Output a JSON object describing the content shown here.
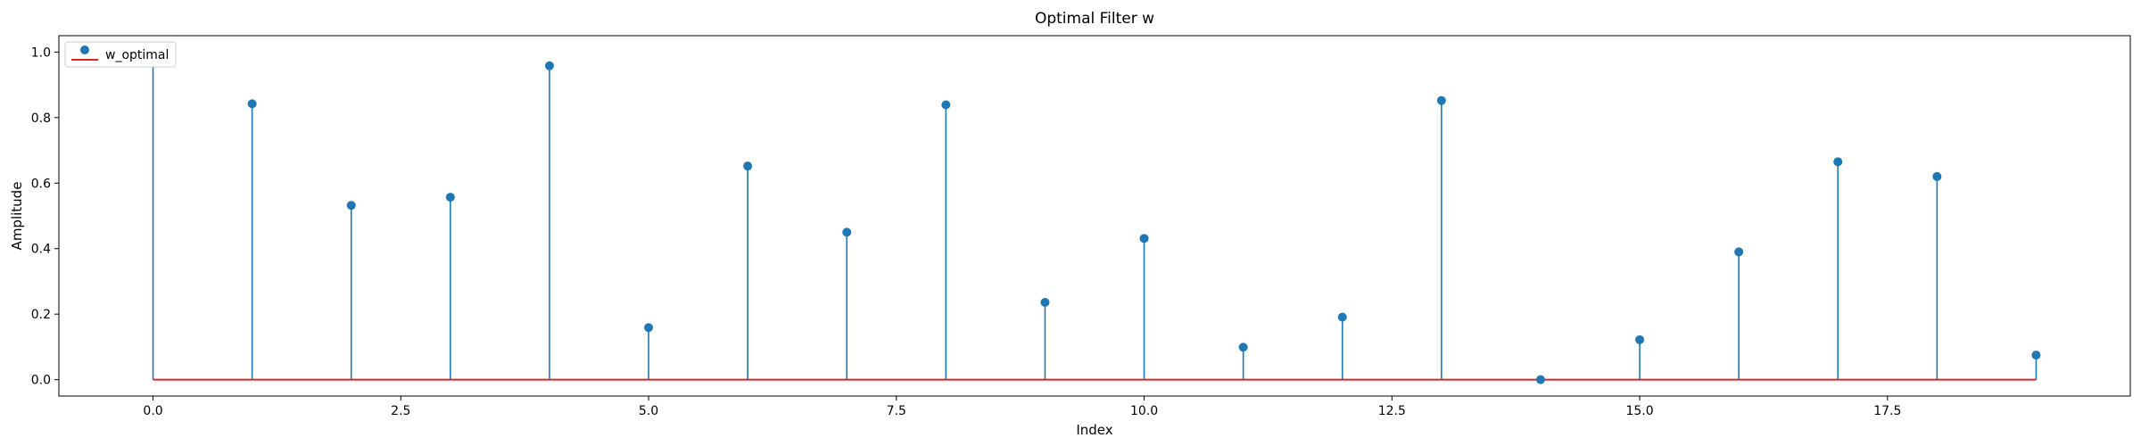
{
  "chart_data": {
    "type": "stem",
    "title": "Optimal Filter w",
    "xlabel": "Index",
    "ylabel": "Amplitude",
    "xlim": [
      -0.95,
      19.95
    ],
    "ylim": [
      -0.05,
      1.05
    ],
    "xticks": [
      0.0,
      2.5,
      5.0,
      7.5,
      10.0,
      12.5,
      15.0,
      17.5
    ],
    "xtick_labels": [
      "0.0",
      "2.5",
      "5.0",
      "7.5",
      "10.0",
      "12.5",
      "15.0",
      "17.5"
    ],
    "yticks": [
      0.0,
      0.2,
      0.4,
      0.6,
      0.8,
      1.0
    ],
    "ytick_labels": [
      "0.0",
      "0.2",
      "0.4",
      "0.6",
      "0.8",
      "1.0"
    ],
    "grid": false,
    "legend_position": "top-left",
    "baseline": 0.0,
    "series": [
      {
        "name": "w_optimal",
        "x": [
          0,
          1,
          2,
          3,
          4,
          5,
          6,
          7,
          8,
          9,
          10,
          11,
          12,
          13,
          14,
          15,
          16,
          17,
          18,
          19
        ],
        "values": [
          1.0,
          0.842,
          0.532,
          0.557,
          0.958,
          0.159,
          0.652,
          0.45,
          0.839,
          0.236,
          0.431,
          0.099,
          0.191,
          0.852,
          0.0,
          0.122,
          0.39,
          0.665,
          0.62,
          0.075
        ],
        "color": "#1f77b4",
        "baseline_color": "#d62728"
      }
    ]
  }
}
